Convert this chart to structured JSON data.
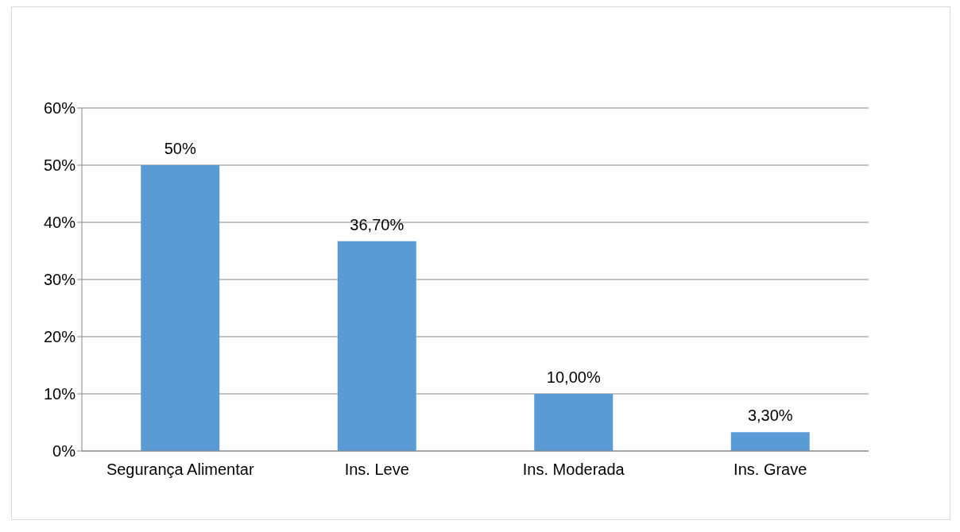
{
  "chart_data": {
    "type": "bar",
    "categories": [
      "Segurança Alimentar",
      "Ins. Leve",
      "Ins. Moderada",
      "Ins. Grave"
    ],
    "values": [
      50,
      36.7,
      10,
      3.3
    ],
    "value_labels": [
      "50%",
      "36,70%",
      "10,00%",
      "3,30%"
    ],
    "color": "#5b9bd5",
    "ylim": [
      0,
      60
    ],
    "yticks": [
      {
        "value": 0,
        "label": "0%"
      },
      {
        "value": 10,
        "label": "10%"
      },
      {
        "value": 20,
        "label": "20%"
      },
      {
        "value": 30,
        "label": "30%"
      },
      {
        "value": 40,
        "label": "40%"
      },
      {
        "value": 50,
        "label": "50%"
      },
      {
        "value": 60,
        "label": "60%"
      }
    ],
    "grid": "y"
  }
}
